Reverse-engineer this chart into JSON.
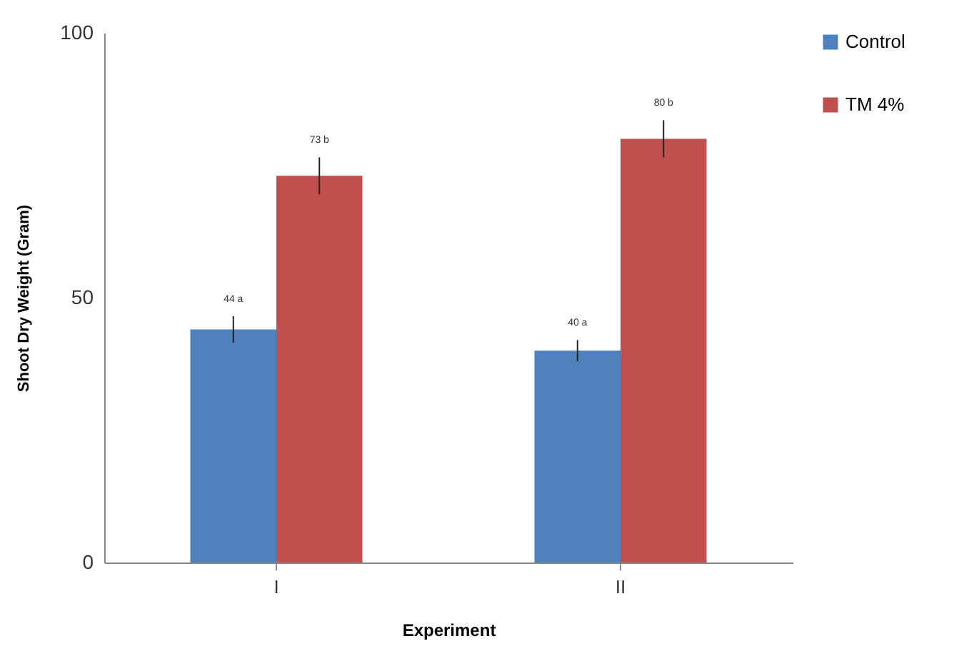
{
  "chart_data": {
    "type": "bar",
    "xlabel": "Experiment",
    "ylabel": "Shoot Dry Weight (Gram)",
    "categories": [
      "I",
      "II"
    ],
    "series": [
      {
        "name": "Control",
        "color": "#4f81bd",
        "values": [
          44,
          40
        ],
        "errors": [
          2.5,
          2
        ],
        "value_labels": [
          "44 a",
          "40 a"
        ]
      },
      {
        "name": "TM 4%",
        "color": "#c0504d",
        "values": [
          73,
          80
        ],
        "errors": [
          3.5,
          3.5
        ],
        "value_labels": [
          "73 b",
          "80 b"
        ]
      }
    ],
    "ylim": [
      0,
      100
    ],
    "yticks": [
      0,
      50,
      100
    ],
    "grid": false,
    "legend": "right"
  }
}
